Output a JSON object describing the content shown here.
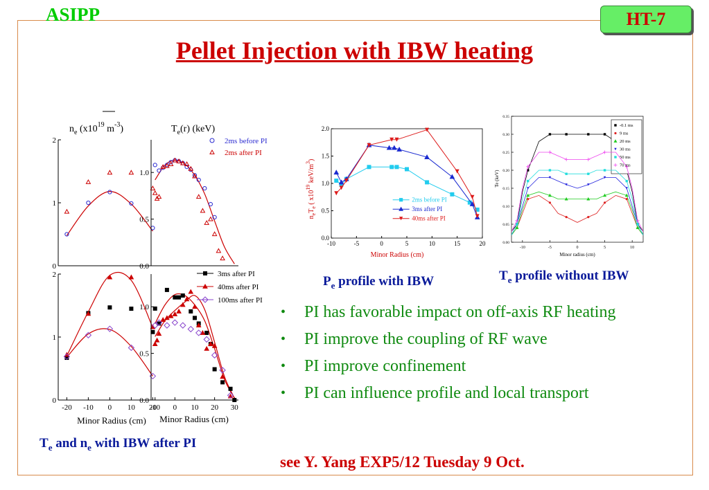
{
  "header": {
    "org": "ASIPP",
    "badge": "HT-7",
    "title": "Pellet Injection with IBW heating"
  },
  "captions": {
    "left": {
      "a": "T",
      "a_sub": "e",
      "b": " and n",
      "b_sub": "e",
      "c": " with IBW after PI"
    },
    "middle": {
      "a": "P",
      "a_sub": "e",
      "b": " profile  with IBW"
    },
    "right": {
      "a": "T",
      "a_sub": "e",
      "b": "  profile without IBW"
    }
  },
  "bullets": [
    "PI has favorable impact on off-axis RF heating",
    "PI improve the coupling of  RF wave",
    "PI improve confinement",
    "PI can influence profile and local transport"
  ],
  "note": "see Y. Yang EXP5/12 Tuesday 9 Oct.",
  "colors": {
    "red": "#cc0000",
    "green": "#0f8a10",
    "navy": "#0a1a9a",
    "blue": "#2a2ad0",
    "cyan": "#22ccee",
    "black": "#000000"
  },
  "chart_data": [
    {
      "type": "scatter",
      "panel": "ne-top",
      "ylabel_parts": {
        "pre": "n",
        "sub": "e",
        "mid": " (x10",
        "sup1": "19",
        "unit": " m",
        "sup2": "-3",
        "post": ")"
      },
      "xlim": [
        -24,
        26
      ],
      "ylim": [
        0,
        2
      ],
      "yticks": [
        "0",
        "1",
        "2"
      ],
      "series": [
        {
          "name": "2ms before PI",
          "marker": "circle",
          "color": "#2a2ad0",
          "x": [
            -20,
            -10,
            0,
            10,
            20
          ],
          "y": [
            0.5,
            1.0,
            1.17,
            0.99,
            0.6
          ]
        },
        {
          "name": "2ms after PI",
          "marker": "triangle-open",
          "color": "#cc0000",
          "x": [
            -20,
            -10,
            0,
            10,
            20
          ],
          "y": [
            0.86,
            1.33,
            1.48,
            1.48,
            1.23
          ]
        }
      ],
      "fit": {
        "color": "#cc0000",
        "x": [
          -20,
          -10,
          0,
          10,
          20
        ],
        "y": [
          0.48,
          0.95,
          1.18,
          0.98,
          0.55
        ]
      }
    },
    {
      "type": "scatter",
      "panel": "te-top",
      "ylabel_parts": {
        "pre": "T",
        "sub": "e",
        "post": "(r) (keV)"
      },
      "xlim": [
        -12,
        32
      ],
      "ylim": [
        0,
        1.35
      ],
      "yticks": [
        "0.0",
        "0.5",
        "1.0"
      ],
      "legend": [
        {
          "label": "2ms before PI",
          "marker": "circle",
          "color": "#2a2ad0"
        },
        {
          "label": "2ms after PI",
          "marker": "triangle-open",
          "color": "#cc0000"
        }
      ],
      "series": [
        {
          "name": "2ms before PI",
          "marker": "circle",
          "color": "#2a2ad0",
          "x": [
            -10,
            -8,
            -6,
            -4,
            -2,
            0,
            2,
            4,
            6,
            8,
            10,
            12,
            15,
            18,
            20
          ],
          "y": [
            1.08,
            1.02,
            1.05,
            1.08,
            1.11,
            1.13,
            1.12,
            1.1,
            1.06,
            1.03,
            0.97,
            0.92,
            0.83,
            0.66,
            0.52
          ]
        },
        {
          "name": "2ms after PI",
          "marker": "triangle-open",
          "color": "#cc0000",
          "x": [
            -10,
            -9,
            -8,
            -6,
            -4,
            -2,
            0,
            2,
            4,
            6,
            8,
            10,
            12,
            14,
            16,
            18,
            20,
            22,
            24
          ],
          "y": [
            0.78,
            0.72,
            0.74,
            1.06,
            1.07,
            1.09,
            1.13,
            1.12,
            1.1,
            1.09,
            1.04,
            0.96,
            0.74,
            0.59,
            0.46,
            0.5,
            0.34,
            0.16,
            0.08
          ]
        }
      ],
      "fit": {
        "color": "#cc0000",
        "x": [
          -10,
          -5,
          0,
          5,
          10,
          15,
          20,
          25,
          30
        ],
        "y": [
          0.92,
          1.08,
          1.13,
          1.09,
          0.97,
          0.77,
          0.48,
          0.2,
          0.02
        ]
      }
    },
    {
      "type": "scatter",
      "panel": "ne-bottom",
      "xlabel": "Minor Radius (cm)",
      "xticks": [
        "-20",
        "-10",
        "0",
        "10",
        "20"
      ],
      "xlim": [
        -24,
        26
      ],
      "ylim": [
        0,
        2
      ],
      "yticks": [
        "0",
        "1",
        "2"
      ],
      "series": [
        {
          "name": "3ms after PI",
          "marker": "square",
          "color": "#000000",
          "x": [
            -20,
            -10,
            0,
            10,
            20
          ],
          "y": [
            0.67,
            1.38,
            1.47,
            1.45,
            1.08
          ]
        },
        {
          "name": "40ms after PI",
          "marker": "triangle",
          "color": "#cc0000",
          "x": [
            -20,
            -10,
            0,
            10,
            20
          ],
          "y": [
            0.72,
            1.37,
            1.95,
            1.95,
            1.16
          ]
        },
        {
          "name": "100ms after PI",
          "marker": "diamond",
          "color": "#8844cc",
          "x": [
            -20,
            -10,
            0,
            10,
            20
          ],
          "y": [
            0.69,
            1.03,
            1.13,
            0.83,
            0.38
          ]
        }
      ],
      "fit": {
        "color": "#cc0000",
        "x": [
          -20,
          -10,
          0,
          10,
          20
        ],
        "y": [
          0.7,
          1.4,
          1.98,
          1.9,
          1.15
        ]
      },
      "fit2": {
        "color": "#cc0000",
        "x": [
          -20,
          -10,
          0,
          10,
          20
        ],
        "y": [
          0.68,
          1.05,
          1.12,
          0.85,
          0.38
        ]
      }
    },
    {
      "type": "scatter",
      "panel": "te-bottom",
      "xlabel": "Minor Radius (cm)",
      "xticks": [
        "-10",
        "0",
        "10",
        "20",
        "30"
      ],
      "xlim": [
        -12,
        32
      ],
      "ylim": [
        0,
        1.35
      ],
      "yticks": [
        "0.0",
        "0.5",
        "1.0"
      ],
      "legend": [
        {
          "label": "3ms after PI",
          "marker": "square",
          "color": "#000000"
        },
        {
          "label": "40ms after PI",
          "marker": "triangle",
          "color": "#cc0000"
        },
        {
          "label": "100ms after PI",
          "marker": "diamond",
          "color": "#8844cc"
        }
      ],
      "series": [
        {
          "name": "3ms after PI",
          "marker": "square",
          "color": "#000000",
          "x": [
            -10,
            -8,
            -4,
            0,
            2,
            4,
            8,
            10,
            12,
            16,
            18,
            20,
            24,
            28,
            30
          ],
          "y": [
            0.98,
            0.82,
            1.18,
            1.1,
            1.1,
            1.12,
            0.95,
            0.88,
            0.82,
            0.72,
            0.6,
            0.33,
            0.19,
            0.12,
            0.0
          ]
        },
        {
          "name": "40ms after PI",
          "marker": "triangle",
          "color": "#cc0000",
          "x": [
            -10,
            -9,
            -8,
            -6,
            -4,
            -2,
            0,
            2,
            4,
            6,
            8,
            10,
            12,
            14,
            16,
            18,
            20,
            24,
            28
          ],
          "y": [
            0.6,
            0.64,
            0.71,
            0.86,
            0.88,
            0.9,
            0.92,
            0.95,
            1.02,
            1.08,
            1.16,
            1.0,
            0.8,
            0.72,
            0.55,
            0.6,
            0.58,
            0.25,
            0.04
          ]
        },
        {
          "name": "100ms after PI",
          "marker": "diamond",
          "color": "#8844cc",
          "x": [
            -10,
            -8,
            -4,
            0,
            4,
            8,
            12,
            16,
            20,
            24,
            28
          ],
          "y": [
            0.8,
            0.83,
            0.8,
            0.83,
            0.8,
            0.76,
            0.72,
            0.65,
            0.48,
            0.32,
            0.05
          ]
        }
      ],
      "fit": {
        "color": "#cc0000",
        "x": [
          -10,
          -5,
          0,
          5,
          10,
          15,
          20,
          25,
          30
        ],
        "y": [
          0.68,
          0.85,
          0.96,
          1.05,
          1.12,
          0.97,
          0.62,
          0.25,
          0.02
        ]
      },
      "fit2": {
        "color": "#cc0000",
        "x": [
          -10,
          -5,
          0,
          5,
          10,
          15,
          20,
          25,
          30
        ],
        "y": [
          0.82,
          1.02,
          1.13,
          1.12,
          1.02,
          0.85,
          0.55,
          0.22,
          0.02
        ]
      }
    },
    {
      "type": "line",
      "panel": "pe",
      "ylabel_parts": {
        "pre": "n",
        "sub1": "e",
        "mid": "T",
        "sub2": "e",
        "post": " ( x10",
        "sup1": "19",
        "unit": " keV/m",
        "sup2": "3",
        "end": ")"
      },
      "xlabel": "Minor Radius (cm)",
      "xlim": [
        -10,
        20
      ],
      "ylim": [
        0,
        2
      ],
      "xticks": [
        "-10",
        "-5",
        "0",
        "5",
        "10",
        "15",
        "20"
      ],
      "yticks": [
        "0.0",
        "0.5",
        "1.0",
        "1.5",
        "2.0"
      ],
      "series": [
        {
          "name": "2ms before PI",
          "marker": "square",
          "color": "#22ccee",
          "x": [
            -9,
            -8,
            -7,
            -2.5,
            2,
            3,
            5,
            9,
            14,
            17.5,
            19
          ],
          "y": [
            1.05,
            0.98,
            1.08,
            1.3,
            1.3,
            1.3,
            1.26,
            1.02,
            0.8,
            0.65,
            0.52
          ]
        },
        {
          "name": "3ms after PI",
          "marker": "triangle",
          "color": "#1a2ad0",
          "x": [
            -9,
            -8,
            -7,
            -2.5,
            1.5,
            2.5,
            3.5,
            9,
            14,
            18,
            19
          ],
          "y": [
            1.2,
            1.02,
            1.08,
            1.7,
            1.65,
            1.65,
            1.62,
            1.48,
            1.12,
            0.62,
            0.38
          ]
        },
        {
          "name": "40ms after PI",
          "marker": "triangle-down",
          "color": "#dd1a1a",
          "x": [
            -9,
            -8,
            -7,
            -2.5,
            2,
            3,
            9,
            15,
            18,
            19
          ],
          "y": [
            0.82,
            0.92,
            1.05,
            1.7,
            1.8,
            1.8,
            1.98,
            1.22,
            0.75,
            0.4
          ]
        }
      ]
    },
    {
      "type": "line",
      "panel": "te-no-ibw",
      "ylabel": "Te (keV)",
      "xlabel": "Minor radius (cm)",
      "xlim": [
        -12,
        12
      ],
      "ylim": [
        0,
        0.35
      ],
      "xticks": [
        "-10",
        "-5",
        "0",
        "5",
        "10"
      ],
      "yticks": [
        "0.00",
        "0.05",
        "0.10",
        "0.15",
        "0.20",
        "0.25",
        "0.30",
        "0.35"
      ],
      "series": [
        {
          "name": "-0.1 ms",
          "color": "#000000",
          "x": [
            -12,
            -11,
            -10,
            -9,
            -7,
            -5,
            -3.5,
            -2,
            0,
            2,
            3.5,
            5,
            7,
            9,
            10,
            11,
            12
          ],
          "y": [
            0.03,
            0.05,
            0.14,
            0.2,
            0.28,
            0.3,
            0.3,
            0.3,
            0.3,
            0.3,
            0.3,
            0.3,
            0.28,
            0.2,
            0.14,
            0.05,
            0.03
          ]
        },
        {
          "name": "9 ms",
          "color": "#dd2222",
          "x": [
            -12,
            -11,
            -10,
            -9,
            -7,
            -5,
            -3.5,
            -2,
            0,
            2,
            3.5,
            5,
            7,
            9,
            10,
            11,
            12
          ],
          "y": [
            0.02,
            0.04,
            0.08,
            0.12,
            0.13,
            0.11,
            0.08,
            0.07,
            0.055,
            0.07,
            0.08,
            0.11,
            0.13,
            0.12,
            0.08,
            0.04,
            0.02
          ]
        },
        {
          "name": "20 ms",
          "color": "#22cc22",
          "x": [
            -12,
            -11,
            -10,
            -9,
            -7,
            -5,
            -3.5,
            -2,
            0,
            2,
            3.5,
            5,
            7,
            9,
            10,
            11,
            12
          ],
          "y": [
            0.02,
            0.04,
            0.09,
            0.13,
            0.14,
            0.13,
            0.12,
            0.12,
            0.12,
            0.12,
            0.12,
            0.13,
            0.14,
            0.13,
            0.09,
            0.04,
            0.02
          ]
        },
        {
          "name": "30 ms",
          "color": "#2222dd",
          "x": [
            -12,
            -11,
            -10,
            -9,
            -7,
            -5,
            -3.5,
            -2,
            0,
            2,
            3.5,
            5,
            7,
            9,
            10,
            11,
            12
          ],
          "y": [
            0.02,
            0.05,
            0.1,
            0.15,
            0.18,
            0.18,
            0.17,
            0.16,
            0.15,
            0.16,
            0.17,
            0.18,
            0.18,
            0.15,
            0.1,
            0.05,
            0.02
          ]
        },
        {
          "name": "50 ms",
          "color": "#22dddd",
          "x": [
            -12,
            -11,
            -10,
            -9,
            -7,
            -5,
            -3.5,
            -2,
            0,
            2,
            3.5,
            5,
            7,
            9,
            10,
            11,
            12
          ],
          "y": [
            0.02,
            0.05,
            0.12,
            0.17,
            0.2,
            0.2,
            0.2,
            0.19,
            0.19,
            0.19,
            0.2,
            0.2,
            0.2,
            0.17,
            0.12,
            0.05,
            0.02
          ]
        },
        {
          "name": "70 ms",
          "color": "#ee44ee",
          "x": [
            -12,
            -11,
            -10,
            -9,
            -7,
            -5,
            -3.5,
            -2,
            0,
            2,
            3.5,
            5,
            7,
            9,
            10,
            11,
            12
          ],
          "y": [
            0.03,
            0.06,
            0.15,
            0.21,
            0.25,
            0.25,
            0.24,
            0.23,
            0.23,
            0.23,
            0.24,
            0.25,
            0.25,
            0.21,
            0.15,
            0.06,
            0.03
          ]
        }
      ]
    }
  ]
}
